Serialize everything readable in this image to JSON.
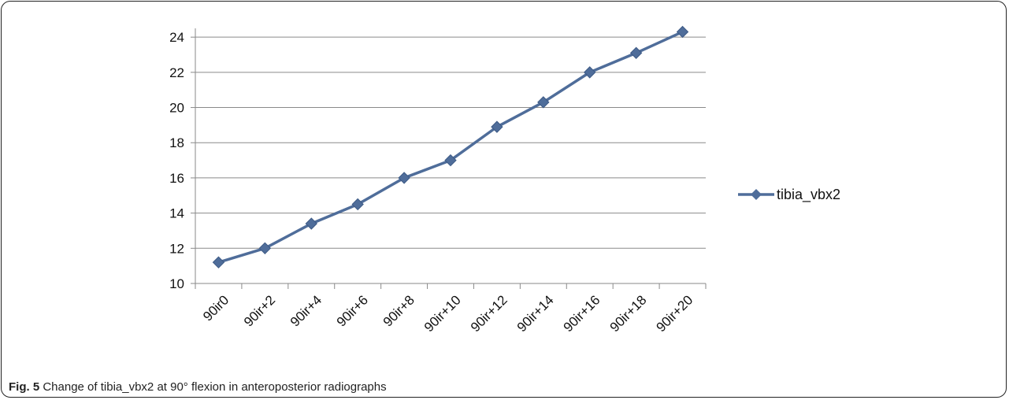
{
  "chart_data": {
    "type": "line",
    "categories": [
      "90ir0",
      "90ir+2",
      "90ir+4",
      "90ir+6",
      "90ir+8",
      "90ir+10",
      "90ir+12",
      "90ir+14",
      "90ir+16",
      "90ir+18",
      "90ir+20"
    ],
    "series": [
      {
        "name": "tibia_vbx2",
        "values": [
          11.2,
          12.0,
          13.4,
          14.5,
          16.0,
          17.0,
          18.9,
          20.3,
          22.0,
          23.1,
          24.3
        ]
      }
    ],
    "yticks": [
      10,
      12,
      14,
      16,
      18,
      20,
      22,
      24
    ],
    "ylim": [
      10,
      24.5
    ],
    "grid": true,
    "legend_position": "right",
    "series_color": "#4f6d9a",
    "title": "",
    "xlabel": "",
    "ylabel": ""
  },
  "caption": {
    "label": "Fig. 5",
    "text": "Change of tibia_vbx2 at 90° flexion in anteroposterior radiographs"
  }
}
